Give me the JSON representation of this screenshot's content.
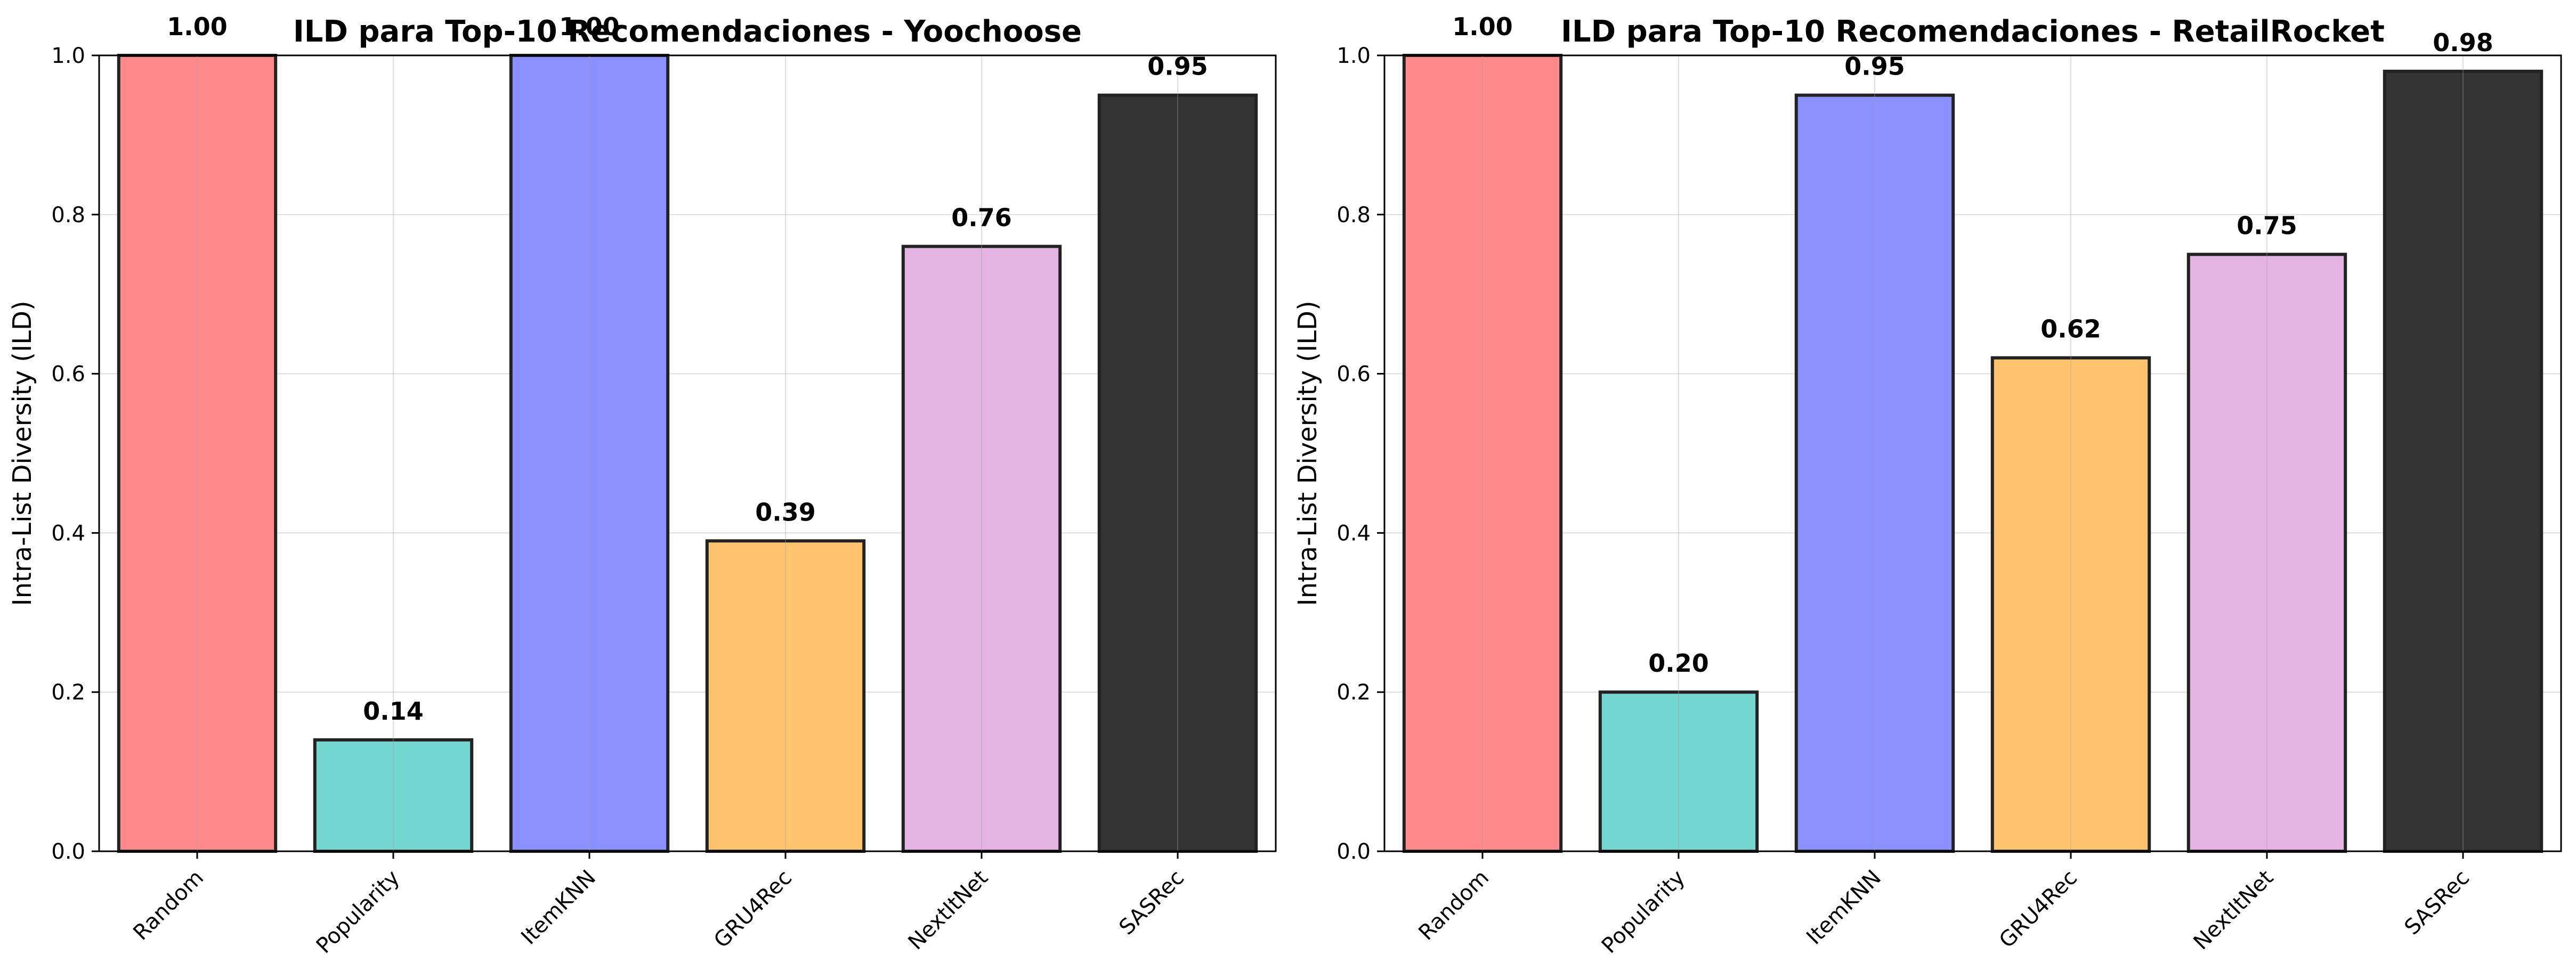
{
  "chart_data": [
    {
      "type": "bar",
      "title": "ILD para Top-10 Recomendaciones - Yoochoose",
      "xlabel": "",
      "ylabel": "Intra-List Diversity (ILD)",
      "categories": [
        "Random",
        "Popularity",
        "ItemKNN",
        "GRU4Rec",
        "NextItNet",
        "SASRec"
      ],
      "values": [
        1.0,
        0.14,
        1.0,
        0.39,
        0.76,
        0.95
      ],
      "value_labels": [
        "1.00",
        "0.14",
        "1.00",
        "0.39",
        "0.76",
        "0.95"
      ],
      "bar_colors": [
        "#ff8a8c",
        "#73d7cf",
        "#8a90ff",
        "#ffc36e",
        "#e3b4e2",
        "#333333"
      ],
      "ylim": [
        0,
        1.0
      ],
      "yticks": [
        0.0,
        0.2,
        0.4,
        0.6,
        0.8,
        1.0
      ],
      "ytick_labels": [
        "0.0",
        "0.2",
        "0.4",
        "0.6",
        "0.8",
        "1.0"
      ],
      "grid": true
    },
    {
      "type": "bar",
      "title": "ILD para Top-10 Recomendaciones - RetailRocket",
      "xlabel": "",
      "ylabel": "Intra-List Diversity (ILD)",
      "categories": [
        "Random",
        "Popularity",
        "ItemKNN",
        "GRU4Rec",
        "NextItNet",
        "SASRec"
      ],
      "values": [
        1.0,
        0.2,
        0.95,
        0.62,
        0.75,
        0.98
      ],
      "value_labels": [
        "1.00",
        "0.20",
        "0.95",
        "0.62",
        "0.75",
        "0.98"
      ],
      "bar_colors": [
        "#ff8a8c",
        "#73d7cf",
        "#8a90ff",
        "#ffc36e",
        "#e3b4e2",
        "#333333"
      ],
      "ylim": [
        0,
        1.0
      ],
      "yticks": [
        0.0,
        0.2,
        0.4,
        0.6,
        0.8,
        1.0
      ],
      "ytick_labels": [
        "0.0",
        "0.2",
        "0.4",
        "0.6",
        "0.8",
        "1.0"
      ],
      "grid": true
    }
  ]
}
